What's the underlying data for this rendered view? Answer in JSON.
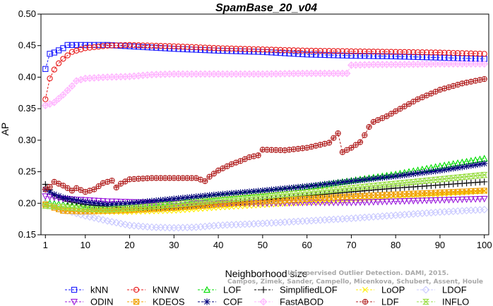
{
  "chart_data": {
    "type": "line",
    "title": "SpamBase_20_v04",
    "xlabel": "Neighborhood size",
    "ylabel": "AP",
    "xlim": [
      0,
      101
    ],
    "ylim": [
      0.15,
      0.5
    ],
    "x_ticks": [
      1,
      10,
      20,
      30,
      40,
      50,
      60,
      70,
      80,
      90,
      100
    ],
    "y_ticks": [
      0.15,
      0.2,
      0.25,
      0.3,
      0.35,
      0.4,
      0.45,
      0.5
    ],
    "y_tick_labels": [
      "0.15",
      "0.20",
      "0.25",
      "0.30",
      "0.35",
      "0.40",
      "0.45",
      "0.50"
    ],
    "grid": false,
    "legend_position": "bottom",
    "watermark": [
      "Campos, Zimek, Sander, Campello, Micenkova, Schubert, Assent, Houle",
      "Unsupervised Outlier Detection. DAMI, 2015."
    ],
    "series": [
      {
        "name": "kNN",
        "color": "#1a1aff",
        "marker": "square",
        "points": [
          [
            1,
            0.413
          ],
          [
            2,
            0.437
          ],
          [
            3,
            0.439
          ],
          [
            5,
            0.446
          ],
          [
            6,
            0.451
          ],
          [
            8,
            0.451
          ],
          [
            10,
            0.451
          ],
          [
            15,
            0.451
          ],
          [
            20,
            0.449
          ],
          [
            30,
            0.445
          ],
          [
            40,
            0.442
          ],
          [
            50,
            0.44
          ],
          [
            60,
            0.436
          ],
          [
            70,
            0.434
          ],
          [
            80,
            0.433
          ],
          [
            90,
            0.431
          ],
          [
            100,
            0.429
          ]
        ]
      },
      {
        "name": "kNNW",
        "color": "#e8191a",
        "marker": "circle",
        "points": [
          [
            1,
            0.365
          ],
          [
            2,
            0.398
          ],
          [
            3,
            0.412
          ],
          [
            4,
            0.422
          ],
          [
            5,
            0.429
          ],
          [
            7,
            0.44
          ],
          [
            10,
            0.446
          ],
          [
            15,
            0.45
          ],
          [
            20,
            0.451
          ],
          [
            30,
            0.449
          ],
          [
            40,
            0.446
          ],
          [
            50,
            0.444
          ],
          [
            60,
            0.442
          ],
          [
            70,
            0.441
          ],
          [
            80,
            0.44
          ],
          [
            90,
            0.439
          ],
          [
            100,
            0.437
          ]
        ]
      },
      {
        "name": "LOF",
        "color": "#00dd00",
        "marker": "triangle",
        "points": [
          [
            1,
            0.201
          ],
          [
            5,
            0.198
          ],
          [
            10,
            0.194
          ],
          [
            15,
            0.193
          ],
          [
            20,
            0.196
          ],
          [
            30,
            0.203
          ],
          [
            40,
            0.212
          ],
          [
            50,
            0.218
          ],
          [
            60,
            0.226
          ],
          [
            70,
            0.236
          ],
          [
            80,
            0.246
          ],
          [
            90,
            0.259
          ],
          [
            100,
            0.271
          ]
        ]
      },
      {
        "name": "SimplifiedLOF",
        "color": "#000000",
        "marker": "plus",
        "points": [
          [
            1,
            0.23
          ],
          [
            3,
            0.212
          ],
          [
            6,
            0.203
          ],
          [
            10,
            0.198
          ],
          [
            15,
            0.195
          ],
          [
            20,
            0.192
          ],
          [
            25,
            0.191
          ],
          [
            30,
            0.192
          ],
          [
            40,
            0.198
          ],
          [
            50,
            0.205
          ],
          [
            60,
            0.212
          ],
          [
            70,
            0.218
          ],
          [
            80,
            0.224
          ],
          [
            90,
            0.229
          ],
          [
            100,
            0.234
          ]
        ]
      },
      {
        "name": "LoOP",
        "color": "#ffee00",
        "marker": "x",
        "points": [
          [
            1,
            0.199
          ],
          [
            3,
            0.194
          ],
          [
            6,
            0.19
          ],
          [
            10,
            0.187
          ],
          [
            15,
            0.186
          ],
          [
            20,
            0.186
          ],
          [
            30,
            0.188
          ],
          [
            40,
            0.193
          ],
          [
            50,
            0.197
          ],
          [
            60,
            0.201
          ],
          [
            70,
            0.205
          ],
          [
            80,
            0.209
          ],
          [
            90,
            0.214
          ],
          [
            100,
            0.219
          ]
        ]
      },
      {
        "name": "LDOF",
        "color": "#c8c8ff",
        "marker": "diamond",
        "points": [
          [
            1,
            0.199
          ],
          [
            5,
            0.19
          ],
          [
            10,
            0.18
          ],
          [
            15,
            0.172
          ],
          [
            20,
            0.165
          ],
          [
            25,
            0.162
          ],
          [
            30,
            0.161
          ],
          [
            35,
            0.162
          ],
          [
            40,
            0.165
          ],
          [
            50,
            0.168
          ],
          [
            60,
            0.172
          ],
          [
            70,
            0.176
          ],
          [
            80,
            0.181
          ],
          [
            90,
            0.186
          ],
          [
            100,
            0.19
          ]
        ]
      },
      {
        "name": "ODIN",
        "color": "#9b1bdc",
        "marker": "triangle-down",
        "points": [
          [
            1,
            0.211
          ],
          [
            5,
            0.207
          ],
          [
            10,
            0.205
          ],
          [
            15,
            0.203
          ],
          [
            20,
            0.202
          ],
          [
            30,
            0.2
          ],
          [
            40,
            0.2
          ],
          [
            50,
            0.2
          ],
          [
            60,
            0.201
          ],
          [
            70,
            0.201
          ],
          [
            80,
            0.203
          ],
          [
            90,
            0.205
          ],
          [
            100,
            0.207
          ]
        ]
      },
      {
        "name": "KDEOS",
        "color": "#f0a000",
        "marker": "square-x",
        "points": [
          [
            1,
            0.198
          ],
          [
            3,
            0.193
          ],
          [
            5,
            0.188
          ],
          [
            10,
            0.187
          ],
          [
            15,
            0.188
          ],
          [
            20,
            0.189
          ],
          [
            30,
            0.193
          ],
          [
            40,
            0.198
          ],
          [
            50,
            0.203
          ],
          [
            60,
            0.207
          ],
          [
            70,
            0.211
          ],
          [
            80,
            0.214
          ],
          [
            90,
            0.217
          ],
          [
            100,
            0.22
          ]
        ]
      },
      {
        "name": "COF",
        "color": "#00007a",
        "marker": "star",
        "points": [
          [
            1,
            0.222
          ],
          [
            3,
            0.214
          ],
          [
            5,
            0.209
          ],
          [
            10,
            0.202
          ],
          [
            15,
            0.198
          ],
          [
            20,
            0.2
          ],
          [
            30,
            0.207
          ],
          [
            40,
            0.214
          ],
          [
            50,
            0.22
          ],
          [
            60,
            0.227
          ],
          [
            70,
            0.235
          ],
          [
            80,
            0.243
          ],
          [
            90,
            0.252
          ],
          [
            100,
            0.263
          ]
        ]
      },
      {
        "name": "FastABOD",
        "color": "#ffb4ff",
        "marker": "diamond-plus",
        "points": [
          [
            1,
            0.355
          ],
          [
            3,
            0.36
          ],
          [
            5,
            0.372
          ],
          [
            7,
            0.386
          ],
          [
            8,
            0.394
          ],
          [
            10,
            0.398
          ],
          [
            15,
            0.4
          ],
          [
            20,
            0.401
          ],
          [
            25,
            0.404
          ],
          [
            30,
            0.405
          ],
          [
            40,
            0.405
          ],
          [
            50,
            0.405
          ],
          [
            60,
            0.406
          ],
          [
            69,
            0.406
          ],
          [
            70,
            0.419
          ],
          [
            75,
            0.42
          ],
          [
            80,
            0.42
          ],
          [
            90,
            0.421
          ],
          [
            100,
            0.421
          ]
        ]
      },
      {
        "name": "LDF",
        "color": "#b22222",
        "marker": "circle-plus",
        "points": [
          [
            1,
            0.222
          ],
          [
            2,
            0.226
          ],
          [
            3,
            0.234
          ],
          [
            5,
            0.228
          ],
          [
            7,
            0.22
          ],
          [
            8,
            0.224
          ],
          [
            10,
            0.218
          ],
          [
            12,
            0.222
          ],
          [
            14,
            0.232
          ],
          [
            16,
            0.236
          ],
          [
            17,
            0.225
          ],
          [
            18,
            0.231
          ],
          [
            20,
            0.238
          ],
          [
            25,
            0.24
          ],
          [
            30,
            0.24
          ],
          [
            35,
            0.24
          ],
          [
            37,
            0.235
          ],
          [
            38,
            0.242
          ],
          [
            40,
            0.252
          ],
          [
            43,
            0.262
          ],
          [
            45,
            0.267
          ],
          [
            47,
            0.273
          ],
          [
            49,
            0.276
          ],
          [
            50,
            0.285
          ],
          [
            55,
            0.284
          ],
          [
            60,
            0.288
          ],
          [
            65,
            0.296
          ],
          [
            67,
            0.311
          ],
          [
            68,
            0.281
          ],
          [
            70,
            0.288
          ],
          [
            72,
            0.297
          ],
          [
            73,
            0.308
          ],
          [
            74,
            0.321
          ],
          [
            75,
            0.329
          ],
          [
            78,
            0.338
          ],
          [
            80,
            0.346
          ],
          [
            85,
            0.365
          ],
          [
            90,
            0.38
          ],
          [
            95,
            0.39
          ],
          [
            100,
            0.397
          ]
        ]
      },
      {
        "name": "INFLO",
        "color": "#99dd44",
        "marker": "hourglass",
        "points": [
          [
            1,
            0.196
          ],
          [
            5,
            0.194
          ],
          [
            10,
            0.191
          ],
          [
            15,
            0.19
          ],
          [
            20,
            0.192
          ],
          [
            30,
            0.198
          ],
          [
            40,
            0.205
          ],
          [
            50,
            0.211
          ],
          [
            60,
            0.217
          ],
          [
            70,
            0.224
          ],
          [
            80,
            0.231
          ],
          [
            90,
            0.238
          ],
          [
            100,
            0.245
          ]
        ]
      }
    ],
    "legend_rows": [
      [
        "kNN",
        "kNNW",
        "LOF",
        "SimplifiedLOF",
        "LoOP",
        "LDOF"
      ],
      [
        "ODIN",
        "KDEOS",
        "COF",
        "FastABOD",
        "LDF",
        "INFLO"
      ]
    ]
  }
}
